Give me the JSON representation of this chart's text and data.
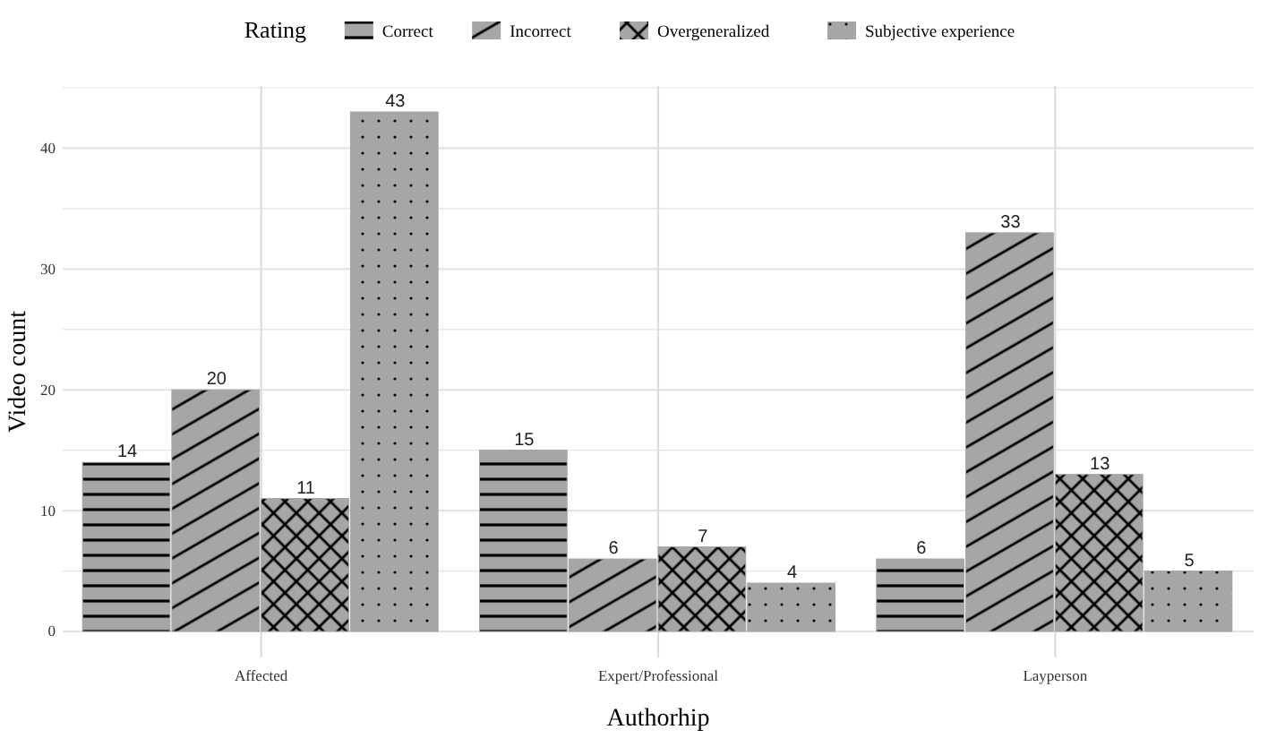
{
  "chart_data": {
    "type": "bar",
    "xlabel": "Authorhip",
    "ylabel": "Video count",
    "legend_title": "Rating",
    "legend": "top",
    "grid": true,
    "data_labels": true,
    "categories": [
      "Affected",
      "Expert/Professional",
      "Layperson"
    ],
    "ylim": [
      -2.15,
      45.15
    ],
    "yticks": [
      0,
      {
        "value": 5,
        "label": null
      },
      10,
      {
        "value": 15,
        "label": null
      },
      20,
      {
        "value": 25,
        "label": null
      },
      30,
      {
        "value": 35,
        "label": null
      },
      40,
      {
        "value": 45,
        "label": null
      }
    ],
    "series": [
      {
        "name": "Correct",
        "color": "#a6a6a6",
        "values": [
          14,
          15,
          6
        ]
      },
      {
        "name": "Incorrect",
        "color": "#a6a6a6",
        "values": [
          20,
          6,
          33
        ]
      },
      {
        "name": "Overgeneralized",
        "color": "#a6a6a6",
        "values": [
          11,
          7,
          13
        ]
      },
      {
        "name": "Subjective experience",
        "color": "#a6a6a6",
        "values": [
          43,
          4,
          5
        ]
      }
    ]
  }
}
